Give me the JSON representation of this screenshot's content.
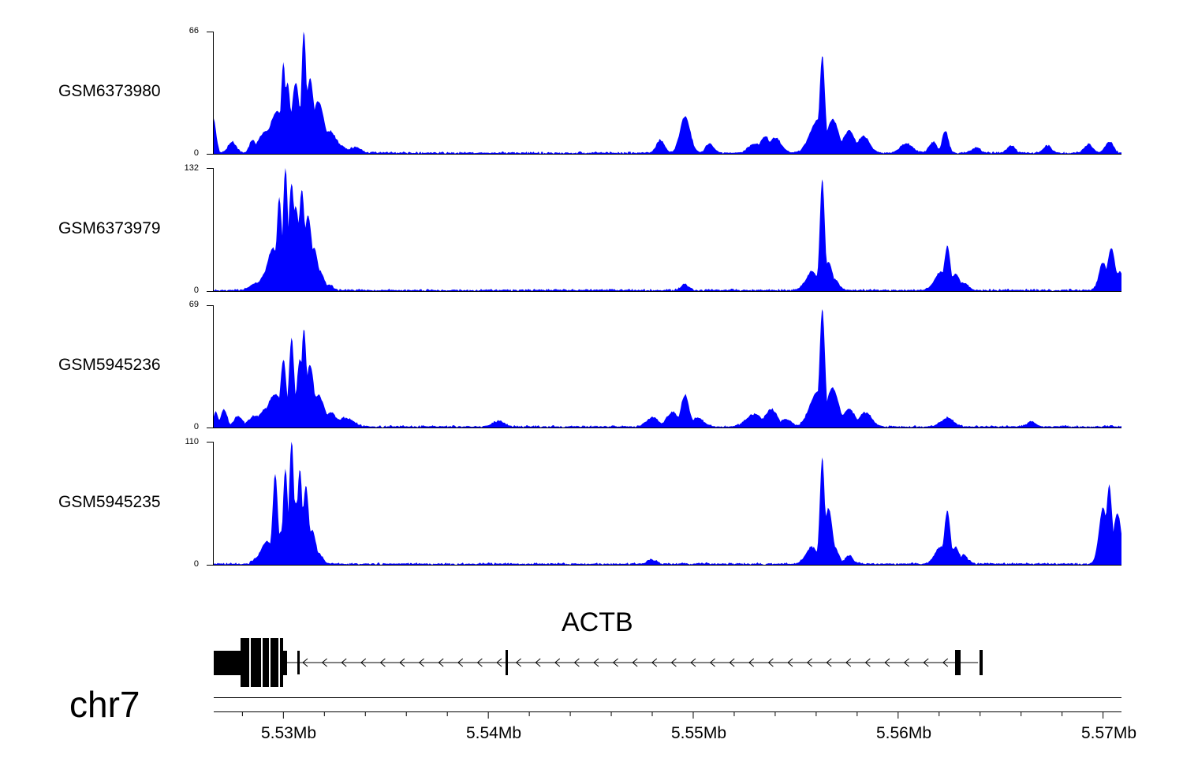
{
  "chart_data": {
    "type": "area",
    "title": "",
    "chromosome": "chr7",
    "gene": {
      "name": "ACTB",
      "strand": "-",
      "start_mb": 5.5266,
      "end_mb": 5.5639
    },
    "xlim_mb": [
      5.5266,
      5.5709
    ],
    "x_ticks": [
      {
        "value": 5.53,
        "label": "5.53Mb"
      },
      {
        "value": 5.54,
        "label": "5.54Mb"
      },
      {
        "value": 5.55,
        "label": "5.55Mb"
      },
      {
        "value": 5.56,
        "label": "5.56Mb"
      },
      {
        "value": 5.57,
        "label": "5.57Mb"
      }
    ],
    "fill_color": "#0000ff",
    "tracks": [
      {
        "name": "GSM6373980",
        "ymax": 66,
        "ymax_label": "66",
        "ymin_label": "0",
        "peaks": [
          {
            "pos": 5.5266,
            "h": 18,
            "w": 0.00012
          },
          {
            "pos": 5.5275,
            "h": 6,
            "w": 0.0002
          },
          {
            "pos": 5.5285,
            "h": 7,
            "w": 0.00015
          },
          {
            "pos": 5.5292,
            "h": 12,
            "w": 0.0004
          },
          {
            "pos": 5.5297,
            "h": 22,
            "w": 0.0004
          },
          {
            "pos": 5.53,
            "h": 49,
            "w": 0.00012
          },
          {
            "pos": 5.5302,
            "h": 38,
            "w": 0.00015
          },
          {
            "pos": 5.5306,
            "h": 38,
            "w": 0.0002
          },
          {
            "pos": 5.531,
            "h": 66,
            "w": 0.00012
          },
          {
            "pos": 5.5313,
            "h": 40,
            "w": 0.0002
          },
          {
            "pos": 5.5317,
            "h": 28,
            "w": 0.0003
          },
          {
            "pos": 5.5322,
            "h": 12,
            "w": 0.0004
          },
          {
            "pos": 5.5328,
            "h": 4,
            "w": 0.0003
          },
          {
            "pos": 5.5335,
            "h": 3,
            "w": 0.0003
          },
          {
            "pos": 5.5484,
            "h": 7,
            "w": 0.0002
          },
          {
            "pos": 5.5496,
            "h": 20,
            "w": 0.00025
          },
          {
            "pos": 5.5508,
            "h": 5,
            "w": 0.0002
          },
          {
            "pos": 5.553,
            "h": 5,
            "w": 0.0003
          },
          {
            "pos": 5.5535,
            "h": 9,
            "w": 0.00025
          },
          {
            "pos": 5.554,
            "h": 8,
            "w": 0.0003
          },
          {
            "pos": 5.5563,
            "h": 53,
            "w": 0.00013
          },
          {
            "pos": 5.5561,
            "h": 18,
            "w": 0.0004
          },
          {
            "pos": 5.5568,
            "h": 18,
            "w": 0.0003
          },
          {
            "pos": 5.5576,
            "h": 12,
            "w": 0.0003
          },
          {
            "pos": 5.5583,
            "h": 9,
            "w": 0.0003
          },
          {
            "pos": 5.5604,
            "h": 5,
            "w": 0.0003
          },
          {
            "pos": 5.5617,
            "h": 6,
            "w": 0.0002
          },
          {
            "pos": 5.5623,
            "h": 12,
            "w": 0.00015
          },
          {
            "pos": 5.5638,
            "h": 3,
            "w": 0.0002
          },
          {
            "pos": 5.5655,
            "h": 4,
            "w": 0.0002
          },
          {
            "pos": 5.5673,
            "h": 4,
            "w": 0.0002
          },
          {
            "pos": 5.5693,
            "h": 5,
            "w": 0.0002
          },
          {
            "pos": 5.5703,
            "h": 6,
            "w": 0.0002
          }
        ]
      },
      {
        "name": "GSM6373979",
        "ymax": 132,
        "ymax_label": "132",
        "ymin_label": "0",
        "peaks": [
          {
            "pos": 5.5287,
            "h": 8,
            "w": 0.0003
          },
          {
            "pos": 5.5292,
            "h": 20,
            "w": 0.0003
          },
          {
            "pos": 5.5295,
            "h": 45,
            "w": 0.0003
          },
          {
            "pos": 5.5298,
            "h": 100,
            "w": 0.00013
          },
          {
            "pos": 5.5301,
            "h": 132,
            "w": 0.00012
          },
          {
            "pos": 5.5304,
            "h": 115,
            "w": 0.00015
          },
          {
            "pos": 5.5306,
            "h": 90,
            "w": 0.0002
          },
          {
            "pos": 5.5309,
            "h": 108,
            "w": 0.00015
          },
          {
            "pos": 5.5312,
            "h": 80,
            "w": 0.0002
          },
          {
            "pos": 5.5315,
            "h": 45,
            "w": 0.0002
          },
          {
            "pos": 5.5318,
            "h": 20,
            "w": 0.0002
          },
          {
            "pos": 5.5322,
            "h": 6,
            "w": 0.0002
          },
          {
            "pos": 5.5496,
            "h": 6,
            "w": 0.0002
          },
          {
            "pos": 5.5558,
            "h": 20,
            "w": 0.0003
          },
          {
            "pos": 5.5563,
            "h": 120,
            "w": 0.00012
          },
          {
            "pos": 5.5566,
            "h": 30,
            "w": 0.0002
          },
          {
            "pos": 5.5569,
            "h": 12,
            "w": 0.0002
          },
          {
            "pos": 5.5621,
            "h": 20,
            "w": 0.0003
          },
          {
            "pos": 5.5624,
            "h": 48,
            "w": 0.00015
          },
          {
            "pos": 5.5628,
            "h": 18,
            "w": 0.0002
          },
          {
            "pos": 5.5632,
            "h": 8,
            "w": 0.0002
          },
          {
            "pos": 5.57,
            "h": 30,
            "w": 0.0002
          },
          {
            "pos": 5.5704,
            "h": 45,
            "w": 0.0002
          },
          {
            "pos": 5.5708,
            "h": 20,
            "w": 0.0002
          }
        ]
      },
      {
        "name": "GSM5945236",
        "ymax": 69,
        "ymax_label": "69",
        "ymin_label": "0",
        "peaks": [
          {
            "pos": 5.5267,
            "h": 8,
            "w": 0.00012
          },
          {
            "pos": 5.5271,
            "h": 10,
            "w": 0.00015
          },
          {
            "pos": 5.5278,
            "h": 6,
            "w": 0.0002
          },
          {
            "pos": 5.5286,
            "h": 6,
            "w": 0.0003
          },
          {
            "pos": 5.5292,
            "h": 10,
            "w": 0.0004
          },
          {
            "pos": 5.5296,
            "h": 18,
            "w": 0.0004
          },
          {
            "pos": 5.53,
            "h": 38,
            "w": 0.00015
          },
          {
            "pos": 5.5304,
            "h": 50,
            "w": 0.00013
          },
          {
            "pos": 5.5308,
            "h": 38,
            "w": 0.00015
          },
          {
            "pos": 5.531,
            "h": 55,
            "w": 0.00013
          },
          {
            "pos": 5.5313,
            "h": 35,
            "w": 0.0002
          },
          {
            "pos": 5.5317,
            "h": 18,
            "w": 0.0003
          },
          {
            "pos": 5.5323,
            "h": 8,
            "w": 0.0003
          },
          {
            "pos": 5.533,
            "h": 5,
            "w": 0.0004
          },
          {
            "pos": 5.5405,
            "h": 3,
            "w": 0.0003
          },
          {
            "pos": 5.548,
            "h": 5,
            "w": 0.0003
          },
          {
            "pos": 5.549,
            "h": 8,
            "w": 0.0003
          },
          {
            "pos": 5.5496,
            "h": 18,
            "w": 0.0002
          },
          {
            "pos": 5.5502,
            "h": 5,
            "w": 0.0003
          },
          {
            "pos": 5.553,
            "h": 7,
            "w": 0.0004
          },
          {
            "pos": 5.5538,
            "h": 10,
            "w": 0.0003
          },
          {
            "pos": 5.5545,
            "h": 4,
            "w": 0.0003
          },
          {
            "pos": 5.5563,
            "h": 67,
            "w": 0.00013
          },
          {
            "pos": 5.5561,
            "h": 20,
            "w": 0.0004
          },
          {
            "pos": 5.5568,
            "h": 22,
            "w": 0.0003
          },
          {
            "pos": 5.5576,
            "h": 10,
            "w": 0.0003
          },
          {
            "pos": 5.5584,
            "h": 8,
            "w": 0.0003
          },
          {
            "pos": 5.5624,
            "h": 5,
            "w": 0.0003
          },
          {
            "pos": 5.5665,
            "h": 3,
            "w": 0.0002
          }
        ]
      },
      {
        "name": "GSM5945235",
        "ymax": 110,
        "ymax_label": "110",
        "ymin_label": "0",
        "peaks": [
          {
            "pos": 5.5287,
            "h": 5,
            "w": 0.0002
          },
          {
            "pos": 5.5292,
            "h": 20,
            "w": 0.0003
          },
          {
            "pos": 5.5296,
            "h": 80,
            "w": 0.00013
          },
          {
            "pos": 5.5299,
            "h": 30,
            "w": 0.0002
          },
          {
            "pos": 5.5301,
            "h": 85,
            "w": 0.00012
          },
          {
            "pos": 5.5304,
            "h": 110,
            "w": 0.00012
          },
          {
            "pos": 5.5306,
            "h": 55,
            "w": 0.0002
          },
          {
            "pos": 5.5308,
            "h": 85,
            "w": 0.00013
          },
          {
            "pos": 5.5311,
            "h": 70,
            "w": 0.00015
          },
          {
            "pos": 5.5314,
            "h": 30,
            "w": 0.0002
          },
          {
            "pos": 5.5317,
            "h": 10,
            "w": 0.0002
          },
          {
            "pos": 5.548,
            "h": 4,
            "w": 0.0002
          },
          {
            "pos": 5.5558,
            "h": 15,
            "w": 0.0003
          },
          {
            "pos": 5.5563,
            "h": 95,
            "w": 0.00012
          },
          {
            "pos": 5.5566,
            "h": 50,
            "w": 0.0002
          },
          {
            "pos": 5.5569,
            "h": 15,
            "w": 0.0002
          },
          {
            "pos": 5.5576,
            "h": 8,
            "w": 0.0002
          },
          {
            "pos": 5.5621,
            "h": 15,
            "w": 0.0003
          },
          {
            "pos": 5.5624,
            "h": 48,
            "w": 0.00015
          },
          {
            "pos": 5.5628,
            "h": 15,
            "w": 0.0002
          },
          {
            "pos": 5.5632,
            "h": 8,
            "w": 0.0002
          },
          {
            "pos": 5.57,
            "h": 50,
            "w": 0.0002
          },
          {
            "pos": 5.5703,
            "h": 70,
            "w": 0.00015
          },
          {
            "pos": 5.5707,
            "h": 45,
            "w": 0.0002
          }
        ]
      }
    ]
  }
}
